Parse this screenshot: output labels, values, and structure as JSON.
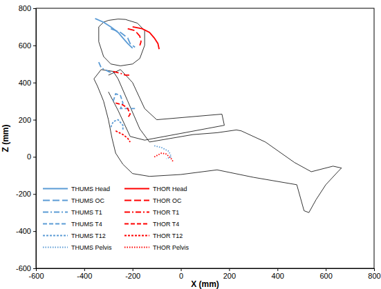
{
  "chart_data": {
    "type": "line",
    "x_label": "X (mm)",
    "y_label": "Z (mm)",
    "xlim": [
      -600,
      800
    ],
    "ylim": [
      -600,
      800
    ],
    "xticks": [
      -600,
      -400,
      -200,
      0,
      200,
      400,
      600,
      800
    ],
    "yticks": [
      -600,
      -400,
      -200,
      0,
      200,
      400,
      600,
      800
    ],
    "grid": false,
    "legend": "lower left",
    "outline": [
      {
        "x": [
          -340,
          -320,
          -300,
          -260,
          -230,
          -180,
          -150,
          -150,
          -170,
          -200,
          -250,
          -290,
          -320,
          -340,
          -340
        ],
        "y": [
          700,
          725,
          735,
          742,
          740,
          720,
          680,
          600,
          530,
          500,
          490,
          500,
          540,
          620,
          700
        ]
      },
      {
        "x": [
          -330,
          -360,
          -345,
          -320,
          -300,
          -285,
          -270,
          -240,
          -200,
          -130,
          0,
          150,
          300,
          480,
          510,
          530,
          560,
          600,
          650,
          665,
          630,
          540,
          470,
          350,
          250,
          230,
          150,
          50,
          -130,
          -170,
          -220,
          -260,
          -280,
          -330
        ],
        "y": [
          470,
          420,
          380,
          300,
          200,
          100,
          20,
          -40,
          -90,
          -105,
          -95,
          -70,
          -110,
          -150,
          -290,
          -300,
          -230,
          -150,
          -80,
          -60,
          -50,
          -80,
          -30,
          80,
          140,
          145,
          130,
          120,
          80,
          150,
          300,
          420,
          460,
          470
        ]
      },
      {
        "x": [
          -300,
          -250,
          -200,
          -150,
          -100,
          170,
          180,
          -150,
          -210,
          -260,
          -300
        ],
        "y": [
          440,
          470,
          400,
          260,
          200,
          230,
          170,
          90,
          110,
          250,
          350
        ]
      }
    ],
    "series": [
      {
        "name": "THUMS Head",
        "color": "#5b9bd5",
        "line_style": "solid",
        "x": [
          -355,
          -320,
          -290,
          -260,
          -240,
          -220,
          -200
        ],
        "values": [
          745,
          725,
          700,
          670,
          640,
          610,
          585
        ]
      },
      {
        "name": "THOR Head",
        "color": "#ff0000",
        "line_style": "solid",
        "x": [
          -200,
          -160,
          -130,
          -110,
          -95,
          -90
        ],
        "values": [
          700,
          690,
          670,
          640,
          610,
          580
        ]
      },
      {
        "name": "THUMS OC",
        "color": "#5b9bd5",
        "line_style": "long-dash",
        "x": [
          -290,
          -250,
          -220,
          -210,
          -190
        ],
        "values": [
          690,
          670,
          640,
          610,
          590
        ]
      },
      {
        "name": "THOR OC",
        "color": "#ff0000",
        "line_style": "long-dash",
        "x": [
          -220,
          -190,
          -170,
          -165,
          -170
        ],
        "values": [
          690,
          680,
          650,
          620,
          600
        ]
      },
      {
        "name": "THUMS T1",
        "color": "#5b9bd5",
        "line_style": "dash-dot",
        "x": [
          -340,
          -330,
          -300,
          -280
        ],
        "values": [
          510,
          480,
          460,
          450
        ]
      },
      {
        "name": "THOR T1",
        "color": "#ff0000",
        "line_style": "dash-dot",
        "x": [
          -280,
          -250,
          -230,
          -210
        ],
        "values": [
          460,
          450,
          440,
          440
        ]
      },
      {
        "name": "THUMS T4",
        "color": "#5b9bd5",
        "line_style": "dash",
        "x": [
          -280,
          -270,
          -250,
          -240,
          -250,
          -230,
          -190
        ],
        "values": [
          300,
          340,
          330,
          290,
          260,
          260,
          260
        ]
      },
      {
        "name": "THOR T4",
        "color": "#ff0000",
        "line_style": "dash",
        "x": [
          -270,
          -240,
          -220,
          -210,
          -220
        ],
        "values": [
          290,
          280,
          260,
          230,
          210
        ]
      },
      {
        "name": "THUMS T12",
        "color": "#5b9bd5",
        "line_style": "short-dash",
        "x": [
          -290,
          -280,
          -260,
          -240,
          -240
        ],
        "values": [
          160,
          190,
          200,
          170,
          140
        ]
      },
      {
        "name": "THOR T12",
        "color": "#ff0000",
        "line_style": "short-dash",
        "x": [
          -270,
          -240,
          -220,
          -210
        ],
        "values": [
          140,
          120,
          100,
          80
        ]
      },
      {
        "name": "THUMS Pelvis",
        "color": "#5b9bd5",
        "line_style": "dotted",
        "x": [
          -110,
          -80,
          -50,
          -40,
          -60
        ],
        "values": [
          60,
          50,
          30,
          0,
          -10
        ]
      },
      {
        "name": "THOR Pelvis",
        "color": "#ff0000",
        "line_style": "dotted",
        "x": [
          -110,
          -80,
          -60,
          -40,
          -30
        ],
        "values": [
          0,
          20,
          15,
          -10,
          -30
        ]
      }
    ]
  }
}
